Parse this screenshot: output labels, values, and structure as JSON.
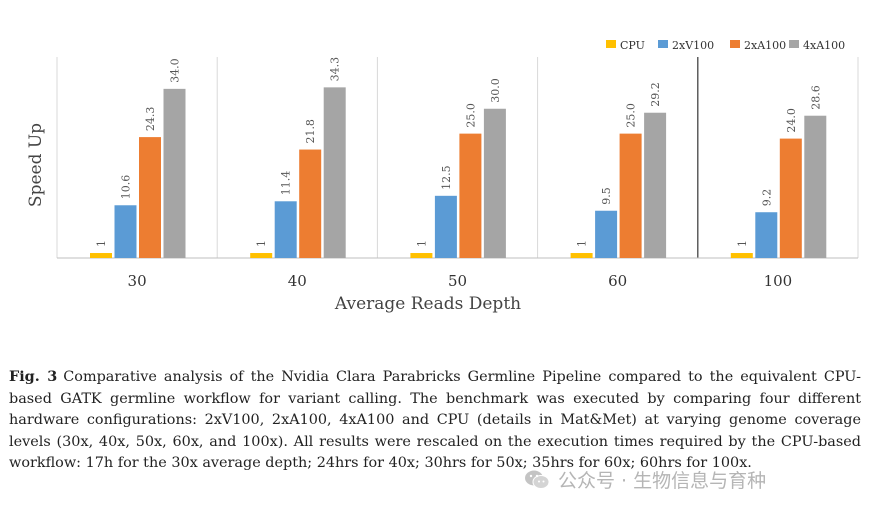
{
  "chart_data": {
    "type": "bar",
    "categories": [
      "30",
      "40",
      "50",
      "60",
      "100"
    ],
    "series": [
      {
        "name": "CPU",
        "color": "#ffc000",
        "values": [
          1,
          1,
          1,
          1,
          1
        ]
      },
      {
        "name": "2xV100",
        "color": "#5b9bd5",
        "values": [
          10.6,
          11.4,
          12.5,
          9.5,
          9.2
        ]
      },
      {
        "name": "2xA100",
        "color": "#ed7d31",
        "values": [
          24.3,
          21.8,
          25.0,
          25.0,
          24.0
        ]
      },
      {
        "name": "4xA100",
        "color": "#a5a5a5",
        "values": [
          34.0,
          34.3,
          30.0,
          29.2,
          28.6
        ]
      }
    ],
    "value_labels": [
      [
        "1",
        "10.6",
        "24.3",
        "34.0"
      ],
      [
        "1",
        "11.4",
        "21.8",
        "34.3"
      ],
      [
        "1",
        "12.5",
        "25.0",
        "30.0"
      ],
      [
        "1",
        "9.5",
        "25.0",
        "29.2"
      ],
      [
        "1",
        "9.2",
        "24.0",
        "28.6"
      ]
    ],
    "xlabel": "Average Reads Depth",
    "ylabel": "Speed Up",
    "ylim": [
      0,
      40
    ],
    "grid": "vertical group separators",
    "legend_position": "top-right"
  },
  "caption": {
    "label": "Fig. 3",
    "text": "Comparative analysis of the Nvidia Clara Parabricks Germline Pipeline compared to the equivalent CPU-based GATK germline workflow for variant calling. The benchmark was executed by comparing four different hardware configurations: 2xV100, 2xA100, 4xA100 and CPU (details in Mat&Met) at varying genome coverage levels (30x, 40x, 50x, 60x, and 100x). All results were rescaled on the execution times required by the CPU-based workflow: 17h for the 30x average depth; 24hrs for 40x; 30hrs for 50x; 35hrs for 60x; 60hrs for 100x."
  },
  "watermark": {
    "text": "公众号 · 生物信息与育种",
    "icon": "wechat-icon"
  }
}
